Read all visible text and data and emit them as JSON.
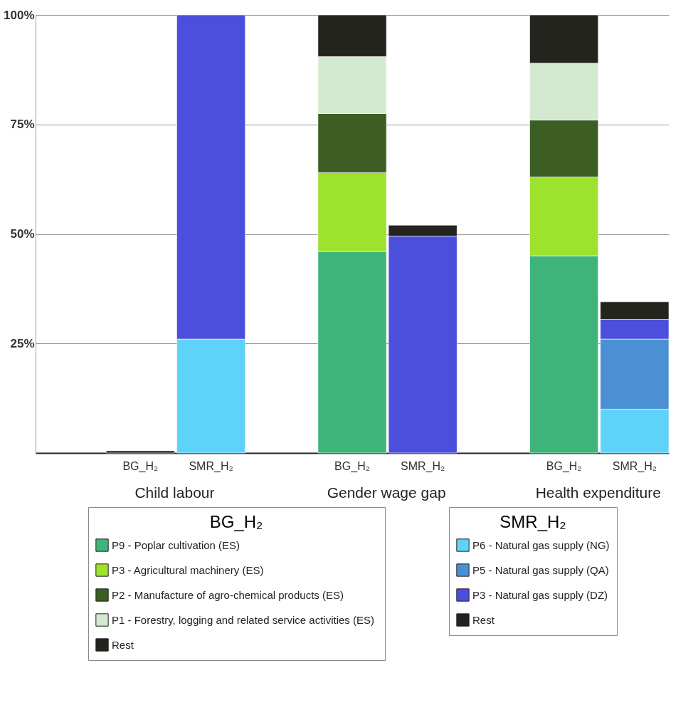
{
  "chart_data": {
    "type": "bar",
    "stacked": true,
    "categories": [
      "BG_H₂",
      "SMR_H₂",
      "BG_H₂",
      "SMR_H₂",
      "BG_H₂",
      "SMR_H₂"
    ],
    "annotations": [
      "Child labour",
      "Gender wage gap",
      "Health expenditure"
    ],
    "ylim": [
      0,
      100
    ],
    "yticks": [
      {
        "value": 25,
        "label": "25%"
      },
      {
        "value": 50,
        "label": "50%"
      },
      {
        "value": 75,
        "label": "75%"
      },
      {
        "value": 100,
        "label": "100%"
      }
    ],
    "grid": "y",
    "legend": "bottom",
    "series": [
      {
        "name": "P9 - Poplar cultivation (ES)",
        "color": "#3fb47a",
        "values": [
          null,
          null,
          46,
          null,
          45,
          null
        ]
      },
      {
        "name": "P3 - Agricultural machinery (ES)",
        "color": "#9de22c",
        "values": [
          null,
          null,
          18,
          null,
          18,
          null
        ]
      },
      {
        "name": "P2 - Manufacture of agro-chemical products  (ES)",
        "color": "#3d5e22",
        "values": [
          null,
          null,
          13.5,
          null,
          13,
          null
        ]
      },
      {
        "name": "P1 - Forestry, logging and related  service activities (ES)",
        "color": "#d3ead0",
        "values": [
          null,
          null,
          13,
          null,
          13,
          null
        ]
      },
      {
        "name": "Rest",
        "color": "#23241d",
        "values": [
          0.5,
          null,
          9.5,
          null,
          11,
          null
        ]
      },
      {
        "name": "P6 - Natural gas supply (NG)",
        "color": "#5fd2fa",
        "values": [
          null,
          26,
          null,
          null,
          null,
          10
        ]
      },
      {
        "name": "P5 - Natural gas supply (QA)",
        "color": "#4a90d2",
        "values": [
          null,
          null,
          null,
          null,
          null,
          16
        ]
      },
      {
        "name": "P3 - Natural gas supply (DZ)",
        "color": "#4b4fdc",
        "values": [
          null,
          74,
          null,
          49.5,
          null,
          4.5
        ]
      },
      {
        "name": "Rest",
        "color": "#23241d",
        "values": [
          null,
          null,
          null,
          2.5,
          null,
          4
        ]
      }
    ]
  }
}
